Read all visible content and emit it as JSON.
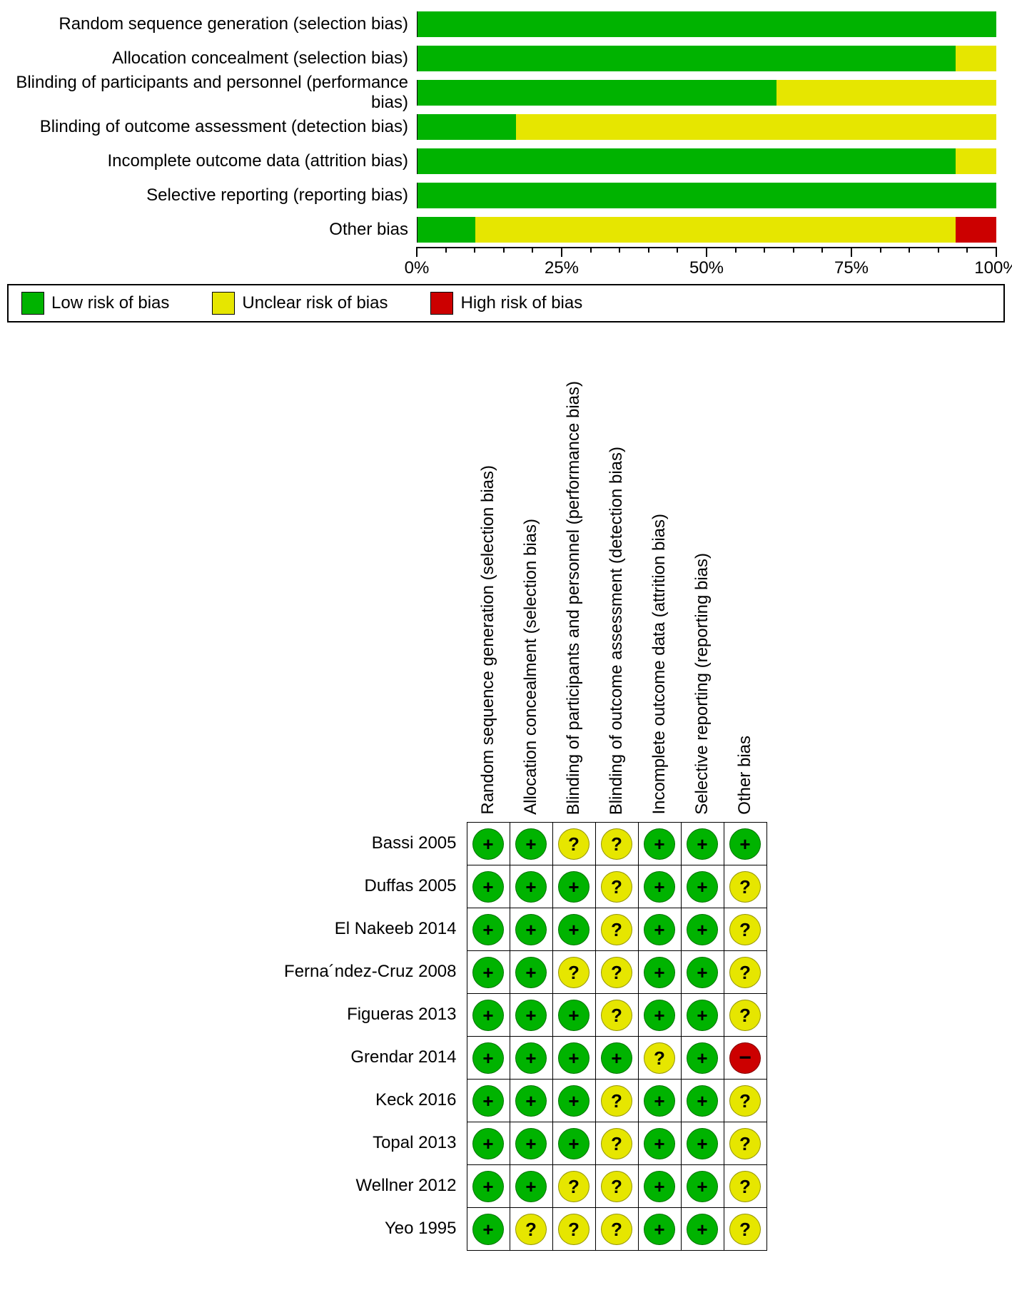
{
  "colors": {
    "low": "#00b300",
    "unclear": "#e6e600",
    "high": "#cc0000",
    "axis": "#000000",
    "background": "#ffffff"
  },
  "legend": {
    "low": "Low risk of bias",
    "unclear": "Unclear risk of bias",
    "high": "High risk of bias"
  },
  "summary_chart": {
    "type": "stacked-bar-horizontal",
    "x_axis": {
      "min": 0,
      "max": 100,
      "ticks": [
        0,
        25,
        50,
        75,
        100
      ],
      "tick_labels": [
        "0%",
        "25%",
        "50%",
        "75%",
        "100%"
      ]
    },
    "bar_font_size": 24,
    "categories": [
      "Random sequence generation (selection bias)",
      "Allocation concealment (selection bias)",
      "Blinding of participants and personnel (performance bias)",
      "Blinding of outcome assessment (detection bias)",
      "Incomplete outcome data (attrition bias)",
      "Selective reporting (reporting bias)",
      "Other bias"
    ],
    "bars": [
      {
        "low": 100,
        "unclear": 0,
        "high": 0
      },
      {
        "low": 93,
        "unclear": 7,
        "high": 0
      },
      {
        "low": 62,
        "unclear": 38,
        "high": 0
      },
      {
        "low": 17,
        "unclear": 83,
        "high": 0
      },
      {
        "low": 93,
        "unclear": 7,
        "high": 0
      },
      {
        "low": 100,
        "unclear": 0,
        "high": 0
      },
      {
        "low": 10,
        "unclear": 83,
        "high": 7
      }
    ]
  },
  "matrix": {
    "type": "risk-of-bias-traffic-light",
    "cell_size": 60,
    "dot_size": 44,
    "font_size": 24,
    "columns": [
      "Random sequence generation (selection bias)",
      "Allocation concealment (selection bias)",
      "Blinding of participants and personnel (performance bias)",
      "Blinding of outcome assessment (detection bias)",
      "Incomplete outcome data (attrition bias)",
      "Selective reporting (reporting bias)",
      "Other bias"
    ],
    "rows": [
      {
        "study": "Bassi 2005",
        "values": [
          "low",
          "low",
          "unclear",
          "unclear",
          "low",
          "low",
          "low"
        ]
      },
      {
        "study": "Duffas 2005",
        "values": [
          "low",
          "low",
          "low",
          "unclear",
          "low",
          "low",
          "unclear"
        ]
      },
      {
        "study": "El Nakeeb 2014",
        "values": [
          "low",
          "low",
          "low",
          "unclear",
          "low",
          "low",
          "unclear"
        ]
      },
      {
        "study": "Ferna´ndez-Cruz 2008",
        "values": [
          "low",
          "low",
          "unclear",
          "unclear",
          "low",
          "low",
          "unclear"
        ]
      },
      {
        "study": "Figueras 2013",
        "values": [
          "low",
          "low",
          "low",
          "unclear",
          "low",
          "low",
          "unclear"
        ]
      },
      {
        "study": "Grendar 2014",
        "values": [
          "low",
          "low",
          "low",
          "low",
          "unclear",
          "low",
          "high"
        ]
      },
      {
        "study": "Keck 2016",
        "values": [
          "low",
          "low",
          "low",
          "unclear",
          "low",
          "low",
          "unclear"
        ]
      },
      {
        "study": "Topal 2013",
        "values": [
          "low",
          "low",
          "low",
          "unclear",
          "low",
          "low",
          "unclear"
        ]
      },
      {
        "study": "Wellner 2012",
        "values": [
          "low",
          "low",
          "unclear",
          "unclear",
          "low",
          "low",
          "unclear"
        ]
      },
      {
        "study": "Yeo 1995",
        "values": [
          "low",
          "unclear",
          "unclear",
          "unclear",
          "low",
          "low",
          "unclear"
        ]
      }
    ]
  }
}
